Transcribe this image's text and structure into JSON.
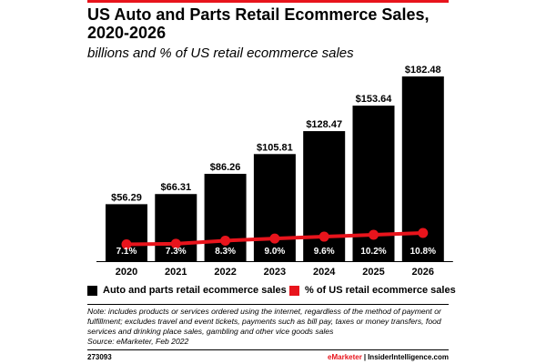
{
  "title": "US Auto and Parts Retail Ecommerce Sales, 2020-2026",
  "subtitle": "billions and % of US retail ecommerce sales",
  "colors": {
    "bar": "#000000",
    "line": "#e8141c",
    "accent": "#e8141c"
  },
  "chart_data": {
    "type": "bar",
    "categories": [
      "2020",
      "2021",
      "2022",
      "2023",
      "2024",
      "2025",
      "2026"
    ],
    "series": [
      {
        "name": "Auto and parts retail ecommerce sales",
        "type": "bar",
        "values": [
          56.29,
          66.31,
          86.26,
          105.81,
          128.47,
          153.64,
          182.48
        ],
        "labels": [
          "$56.29",
          "$66.31",
          "$86.26",
          "$105.81",
          "$128.47",
          "$153.64",
          "$182.48"
        ]
      },
      {
        "name": "% of US retail ecommerce sales",
        "type": "line",
        "values": [
          7.1,
          7.3,
          8.3,
          9.0,
          9.6,
          10.2,
          10.8
        ],
        "labels": [
          "7.1%",
          "7.3%",
          "8.3%",
          "9.0%",
          "9.6%",
          "10.2%",
          "10.8%"
        ]
      }
    ],
    "legend_position": "bottom",
    "grid": false
  },
  "legend": {
    "bar_label": "Auto and parts retail ecommerce sales",
    "line_label": "% of US retail ecommerce sales"
  },
  "note": "Note: includes products or services ordered using the internet, regardless of the method of payment or fulfillment; excludes travel and event tickets, payments such as bill pay, taxes or money transfers, food services and drinking place sales, gambling and other vice goods sales",
  "source": "Source: eMarketer, Feb 2022",
  "footer": {
    "code": "273093",
    "brand_left": "eMarketer",
    "separator": "|",
    "brand_right": "InsiderIntelligence.com"
  }
}
